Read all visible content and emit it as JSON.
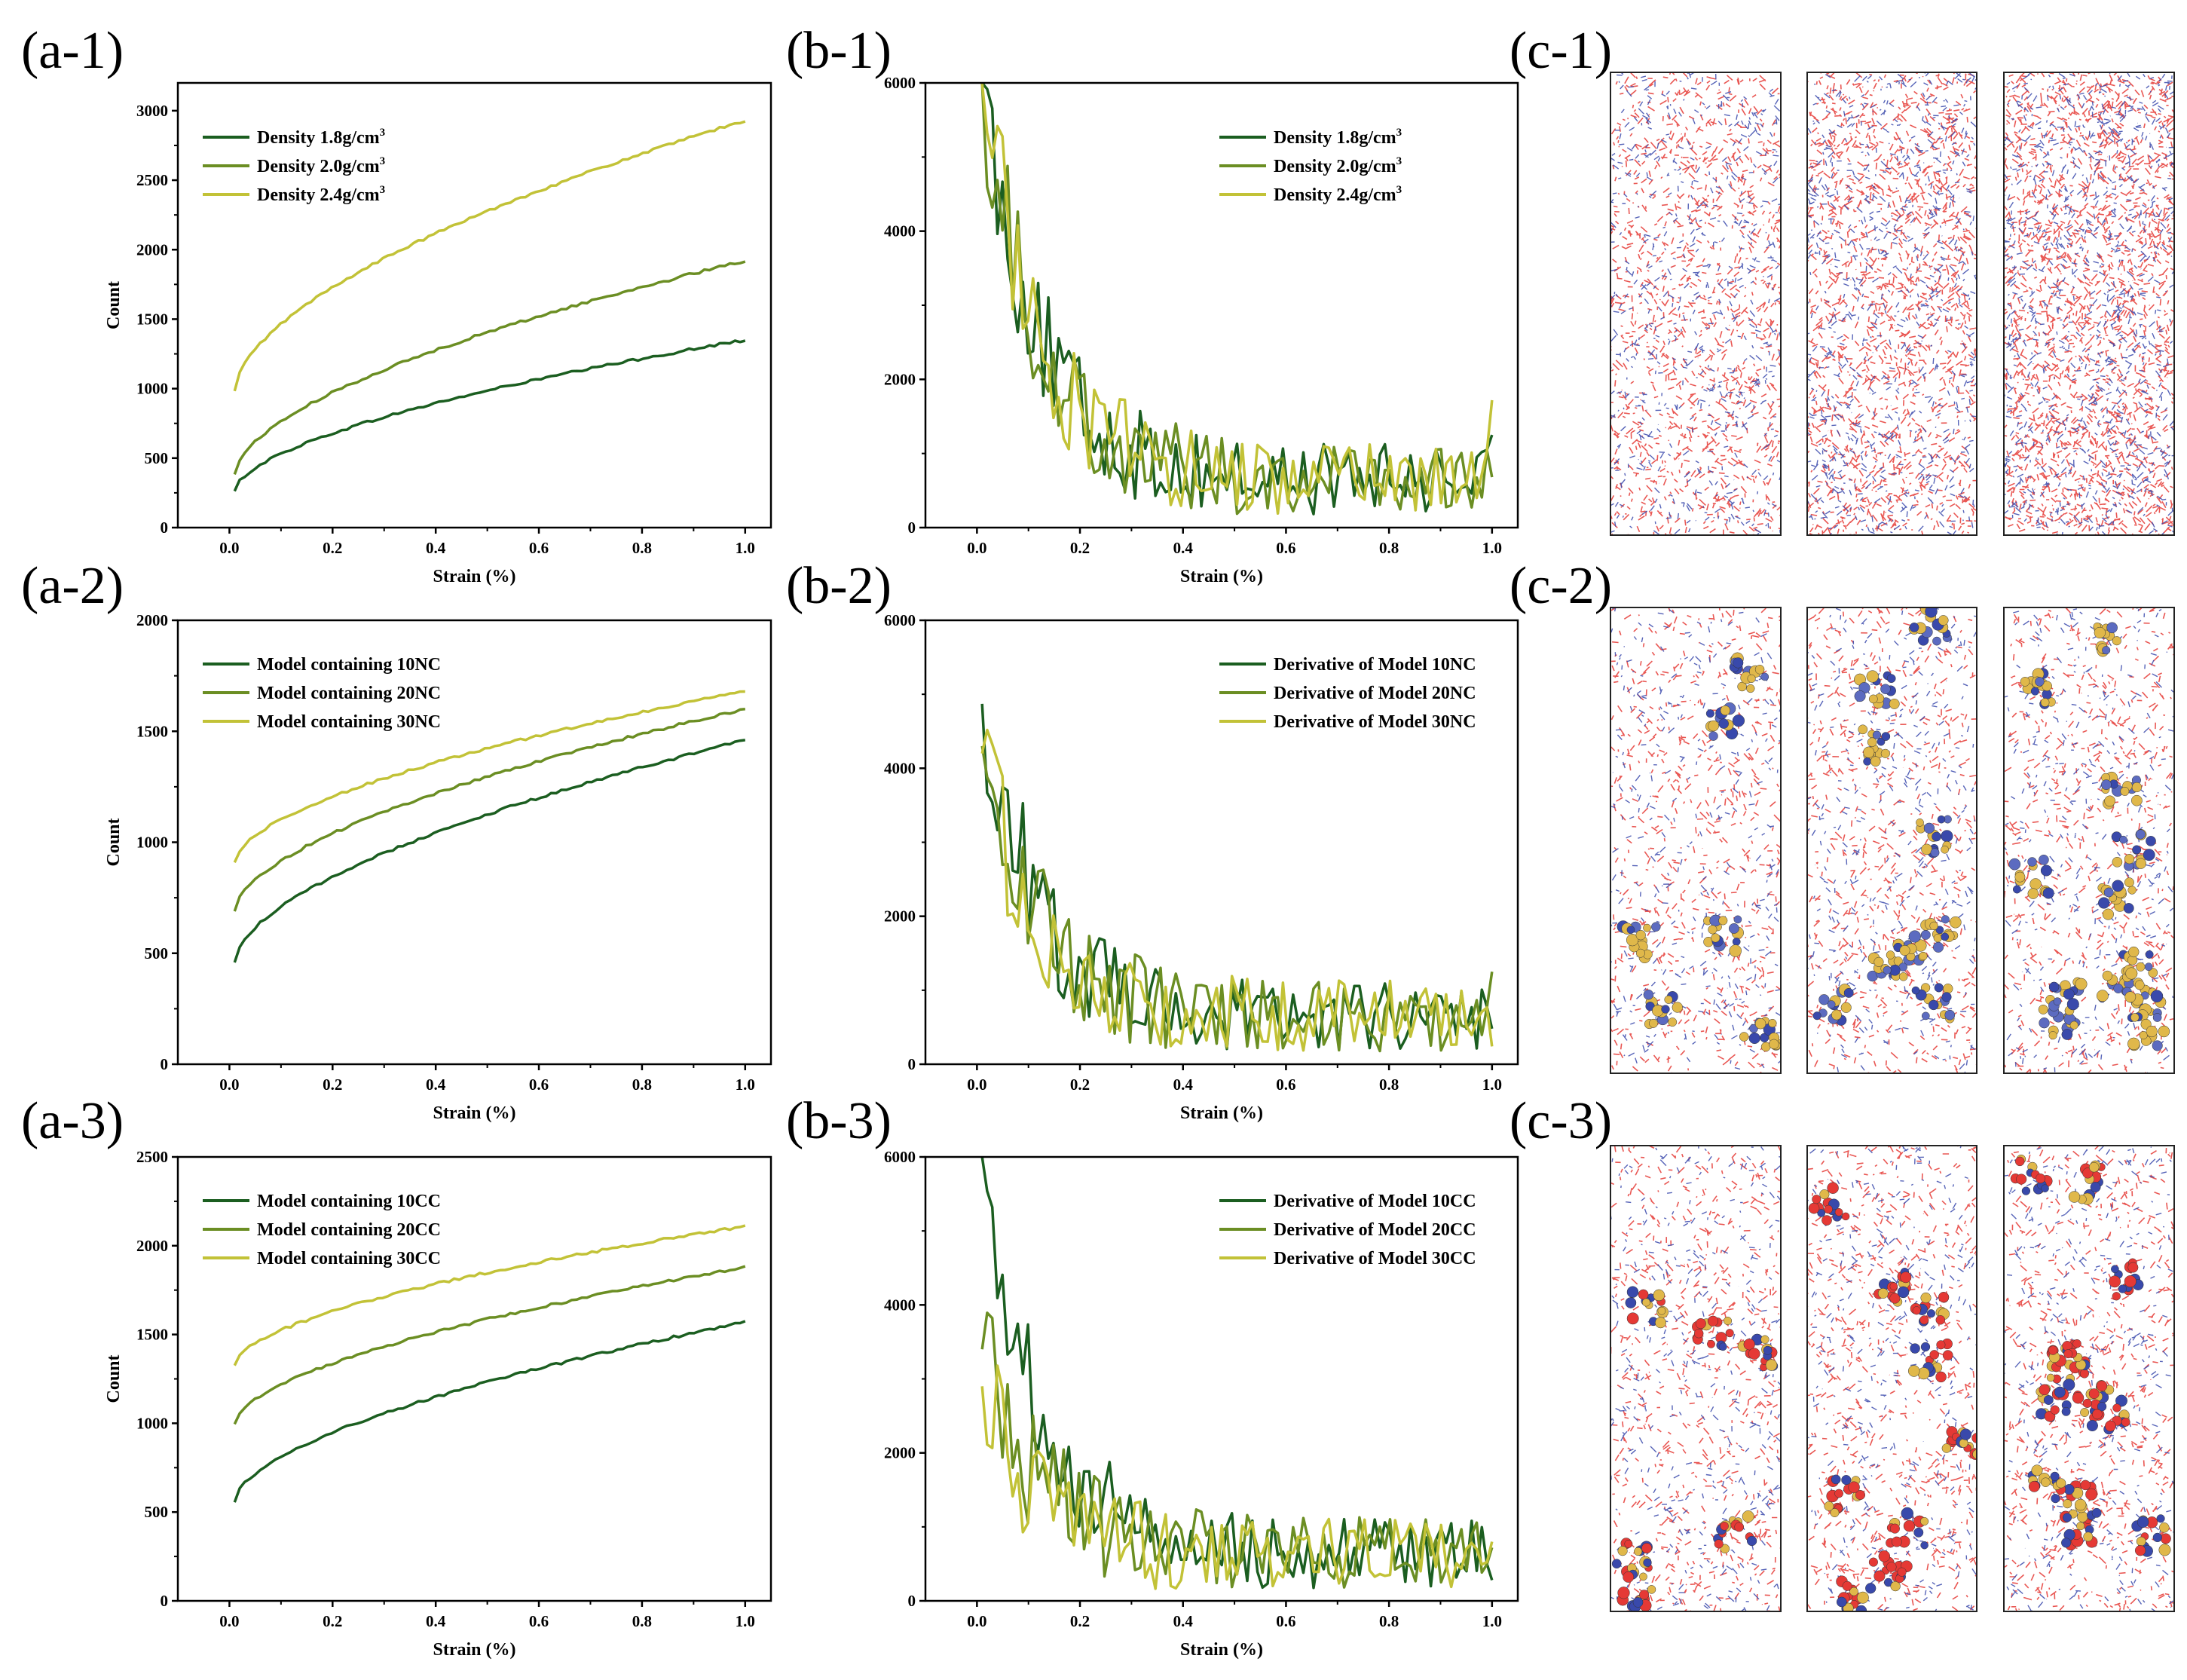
{
  "panel_labels": [
    "(a-1)",
    "(b-1)",
    "(c-1)",
    "(a-2)",
    "(b-2)",
    "(c-2)",
    "(a-3)",
    "(b-3)",
    "(c-3)"
  ],
  "colors": {
    "dark": "#1b5e20",
    "mid": "#6b8e23",
    "light": "#c2c237",
    "bond_red": "#e53935",
    "bond_blue": "#3949ab",
    "bead_gold": "#e0b84a"
  },
  "chart_data": [
    {
      "id": "a1",
      "type": "line",
      "xlabel": "Strain (%)",
      "ylabel": "Count",
      "xlim": [
        -0.1,
        1.05
      ],
      "ylim": [
        0,
        3200
      ],
      "xticks": [
        "0.0",
        "0.2",
        "0.4",
        "0.6",
        "0.8",
        "1.0"
      ],
      "yticks": [
        "0",
        "500",
        "1000",
        "1500",
        "2000",
        "2500",
        "3000"
      ],
      "legend": {
        "position": "top-left",
        "sup": "3"
      },
      "series": [
        {
          "name": "Density 1.8g/cm",
          "start": 260,
          "end": 1350
        },
        {
          "name": "Density 2.0g/cm",
          "start": 380,
          "end": 1920
        },
        {
          "name": "Density 2.4g/cm",
          "start": 980,
          "end": 2930
        }
      ]
    },
    {
      "id": "b1",
      "type": "line",
      "xlabel": "Strain (%)",
      "ylabel": "",
      "xlim": [
        -0.1,
        1.05
      ],
      "ylim": [
        0,
        6000
      ],
      "xticks": [
        "0.0",
        "0.2",
        "0.4",
        "0.6",
        "0.8",
        "1.0"
      ],
      "yticks": [
        "0",
        "2000",
        "4000",
        "6000"
      ],
      "legend": {
        "position": "top-right",
        "sup": "3"
      },
      "series": [
        {
          "name": "Density 1.8g/cm",
          "start": 6000,
          "end": 1250
        },
        {
          "name": "Density 2.0g/cm",
          "start": 6000,
          "end": 680
        },
        {
          "name": "Density 2.4g/cm",
          "start": 6000,
          "end": 1720
        }
      ]
    },
    {
      "id": "a2",
      "type": "line",
      "xlabel": "Strain (%)",
      "ylabel": "Count",
      "xlim": [
        -0.1,
        1.05
      ],
      "ylim": [
        0,
        2000
      ],
      "xticks": [
        "0.0",
        "0.2",
        "0.4",
        "0.6",
        "0.8",
        "1.0"
      ],
      "yticks": [
        "0",
        "500",
        "1000",
        "1500",
        "2000"
      ],
      "legend": {
        "position": "top-left",
        "sup": ""
      },
      "series": [
        {
          "name": "Model containing 10NC",
          "start": 460,
          "end": 1460
        },
        {
          "name": "Model containing 20NC",
          "start": 690,
          "end": 1600
        },
        {
          "name": "Model containing 30NC",
          "start": 910,
          "end": 1680
        }
      ]
    },
    {
      "id": "b2",
      "type": "line",
      "xlabel": "Strain (%)",
      "ylabel": "",
      "xlim": [
        -0.1,
        1.05
      ],
      "ylim": [
        0,
        6000
      ],
      "xticks": [
        "0.0",
        "0.2",
        "0.4",
        "0.6",
        "0.8",
        "1.0"
      ],
      "yticks": [
        "0",
        "2000",
        "4000",
        "6000"
      ],
      "legend": {
        "position": "top-right",
        "sup": ""
      },
      "series": [
        {
          "name": "Derivative of Model 10NC",
          "start": 4870,
          "end": 480
        },
        {
          "name": "Derivative of Model 20NC",
          "start": 4300,
          "end": 1250
        },
        {
          "name": "Derivative of Model 30NC",
          "start": 4200,
          "end": 240
        }
      ]
    },
    {
      "id": "a3",
      "type": "line",
      "xlabel": "Strain (%)",
      "ylabel": "Count",
      "xlim": [
        -0.1,
        1.05
      ],
      "ylim": [
        0,
        2500
      ],
      "xticks": [
        "0.0",
        "0.2",
        "0.4",
        "0.6",
        "0.8",
        "1.0"
      ],
      "yticks": [
        "0",
        "500",
        "1000",
        "1500",
        "2000",
        "2500"
      ],
      "legend": {
        "position": "top-left",
        "sup": ""
      },
      "series": [
        {
          "name": "Model containing 10CC",
          "start": 560,
          "end": 1570
        },
        {
          "name": "Model containing 20CC",
          "start": 1000,
          "end": 1880
        },
        {
          "name": "Model containing 30CC",
          "start": 1330,
          "end": 2110
        }
      ]
    },
    {
      "id": "b3",
      "type": "line",
      "xlabel": "Strain (%)",
      "ylabel": "",
      "xlim": [
        -0.1,
        1.05
      ],
      "ylim": [
        0,
        6000
      ],
      "xticks": [
        "0.0",
        "0.2",
        "0.4",
        "0.6",
        "0.8",
        "1.0"
      ],
      "yticks": [
        "0",
        "2000",
        "4000",
        "6000"
      ],
      "legend": {
        "position": "top-right",
        "sup": ""
      },
      "series": [
        {
          "name": "Derivative of Model 10CC",
          "start": 6000,
          "end": 280
        },
        {
          "name": "Derivative of Model 20CC",
          "start": 3400,
          "end": 720
        },
        {
          "name": "Derivative of Model 30CC",
          "start": 2900,
          "end": 800
        }
      ]
    }
  ]
}
